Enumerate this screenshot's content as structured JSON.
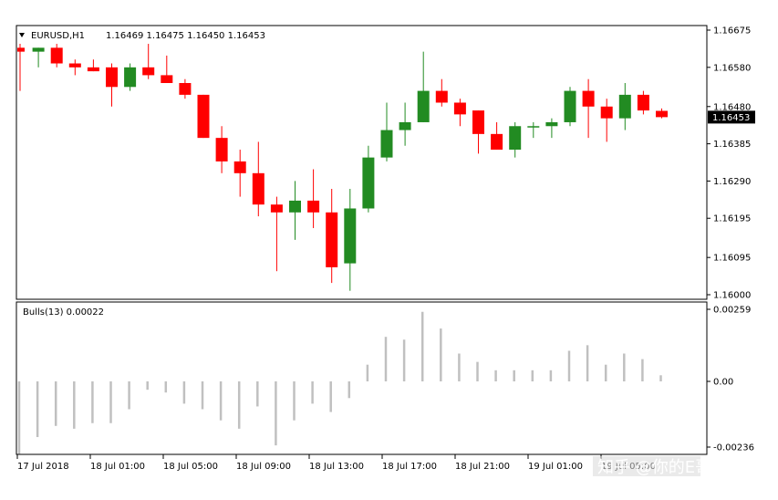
{
  "chart_data": [
    {
      "type": "candlestick",
      "symbol_label": "EURUSD,H1",
      "ohlc_label": "1.16469 1.16475 1.16450 1.16453",
      "ylim": [
        1.16,
        1.16675
      ],
      "y_ticks": [
        "1.16675",
        "1.16580",
        "1.16480",
        "1.16385",
        "1.16290",
        "1.16195",
        "1.16095",
        "1.16000"
      ],
      "current_price": "1.16453",
      "colors": {
        "bull": "#228B22",
        "bear": "#FF0000",
        "price_tag_bg": "#000000"
      },
      "candles": [
        {
          "o": 1.1663,
          "h": 1.1664,
          "l": 1.1652,
          "c": 1.1662
        },
        {
          "o": 1.1662,
          "h": 1.1663,
          "l": 1.1658,
          "c": 1.1663
        },
        {
          "o": 1.1663,
          "h": 1.1664,
          "l": 1.1658,
          "c": 1.1659
        },
        {
          "o": 1.1659,
          "h": 1.166,
          "l": 1.1656,
          "c": 1.1658
        },
        {
          "o": 1.1658,
          "h": 1.166,
          "l": 1.1657,
          "c": 1.1657
        },
        {
          "o": 1.1658,
          "h": 1.1659,
          "l": 1.1648,
          "c": 1.1653
        },
        {
          "o": 1.1653,
          "h": 1.1659,
          "l": 1.1652,
          "c": 1.1658
        },
        {
          "o": 1.1658,
          "h": 1.1664,
          "l": 1.1655,
          "c": 1.1656
        },
        {
          "o": 1.1656,
          "h": 1.1661,
          "l": 1.1654,
          "c": 1.1654
        },
        {
          "o": 1.1654,
          "h": 1.1655,
          "l": 1.165,
          "c": 1.1651
        },
        {
          "o": 1.1651,
          "h": 1.1651,
          "l": 1.164,
          "c": 1.164
        },
        {
          "o": 1.164,
          "h": 1.1643,
          "l": 1.1631,
          "c": 1.1634
        },
        {
          "o": 1.1634,
          "h": 1.1637,
          "l": 1.1625,
          "c": 1.1631
        },
        {
          "o": 1.1631,
          "h": 1.1639,
          "l": 1.162,
          "c": 1.1623
        },
        {
          "o": 1.1623,
          "h": 1.1625,
          "l": 1.1606,
          "c": 1.1621
        },
        {
          "o": 1.1621,
          "h": 1.1629,
          "l": 1.1614,
          "c": 1.1624
        },
        {
          "o": 1.1624,
          "h": 1.1632,
          "l": 1.1617,
          "c": 1.1621
        },
        {
          "o": 1.1621,
          "h": 1.1627,
          "l": 1.1603,
          "c": 1.1607
        },
        {
          "o": 1.1608,
          "h": 1.1627,
          "l": 1.1601,
          "c": 1.1622
        },
        {
          "o": 1.1622,
          "h": 1.1638,
          "l": 1.1621,
          "c": 1.1635
        },
        {
          "o": 1.1635,
          "h": 1.1649,
          "l": 1.1634,
          "c": 1.1642
        },
        {
          "o": 1.1642,
          "h": 1.1649,
          "l": 1.1638,
          "c": 1.1644
        },
        {
          "o": 1.1644,
          "h": 1.1662,
          "l": 1.1644,
          "c": 1.1652
        },
        {
          "o": 1.1652,
          "h": 1.1655,
          "l": 1.1648,
          "c": 1.1649
        },
        {
          "o": 1.1649,
          "h": 1.165,
          "l": 1.1643,
          "c": 1.1646
        },
        {
          "o": 1.1647,
          "h": 1.1647,
          "l": 1.1636,
          "c": 1.1641
        },
        {
          "o": 1.1641,
          "h": 1.1644,
          "l": 1.1637,
          "c": 1.1637
        },
        {
          "o": 1.1637,
          "h": 1.1644,
          "l": 1.1635,
          "c": 1.1643
        },
        {
          "o": 1.1643,
          "h": 1.1644,
          "l": 1.164,
          "c": 1.1643
        },
        {
          "o": 1.1643,
          "h": 1.1645,
          "l": 1.164,
          "c": 1.1644
        },
        {
          "o": 1.1644,
          "h": 1.1653,
          "l": 1.1643,
          "c": 1.1652
        },
        {
          "o": 1.1652,
          "h": 1.1655,
          "l": 1.164,
          "c": 1.1648
        },
        {
          "o": 1.1648,
          "h": 1.165,
          "l": 1.1639,
          "c": 1.1645
        },
        {
          "o": 1.1645,
          "h": 1.1654,
          "l": 1.1642,
          "c": 1.1651
        },
        {
          "o": 1.1651,
          "h": 1.1652,
          "l": 1.1646,
          "c": 1.1647
        },
        {
          "o": 1.16469,
          "h": 1.16475,
          "l": 1.1645,
          "c": 1.16453
        }
      ]
    },
    {
      "type": "histogram",
      "indicator_label": "Bulls(13) 0.00022",
      "ylim": [
        -0.00236,
        0.00259
      ],
      "y_ticks": [
        "0.00259",
        "0.00",
        "-0.00236"
      ],
      "color": "#C0C0C0",
      "values": [
        -0.0026,
        -0.002,
        -0.0016,
        -0.0017,
        -0.0015,
        -0.0015,
        -0.001,
        -0.0003,
        -0.0004,
        -0.0008,
        -0.001,
        -0.0014,
        -0.0017,
        -0.0009,
        -0.0023,
        -0.0014,
        -0.0008,
        -0.0011,
        -0.0006,
        0.0006,
        0.0016,
        0.0015,
        0.0025,
        0.0019,
        0.001,
        0.0007,
        0.0004,
        0.0004,
        0.0004,
        0.0004,
        0.0011,
        0.0013,
        0.0006,
        0.001,
        0.0008,
        0.00022
      ]
    }
  ],
  "time_axis": {
    "labels": [
      "17 Jul 2018",
      "18 Jul 01:00",
      "18 Jul 05:00",
      "18 Jul 09:00",
      "18 Jul 13:00",
      "18 Jul 17:00",
      "18 Jul 21:00",
      "19 Jul 01:00",
      "19 Jul 05:00"
    ]
  },
  "watermark": "知乎 @你的E哥"
}
